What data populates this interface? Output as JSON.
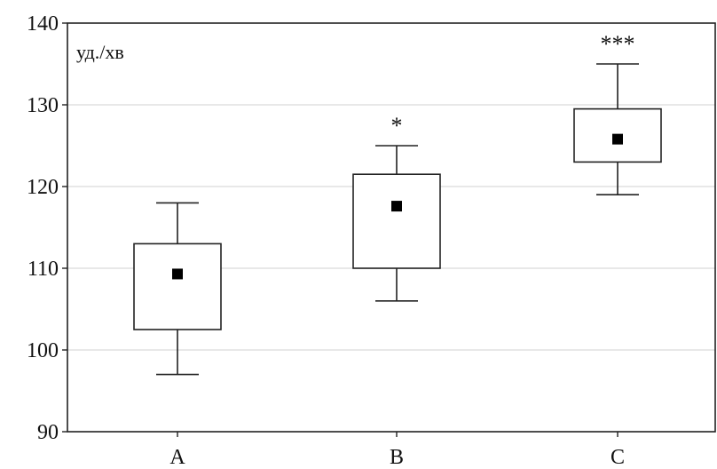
{
  "chart_data": {
    "type": "box",
    "ylabel": "уд./хв",
    "ylim": [
      90,
      140
    ],
    "yticks": [
      90,
      100,
      110,
      120,
      130,
      140
    ],
    "grid": true,
    "categories": [
      "A",
      "B",
      "C"
    ],
    "boxes": [
      {
        "category": "A",
        "whisker_low": 97,
        "box_low": 102.5,
        "mean": 109.3,
        "box_high": 113,
        "whisker_high": 118,
        "significance": ""
      },
      {
        "category": "B",
        "whisker_low": 106,
        "box_low": 110,
        "mean": 117.6,
        "box_high": 121.5,
        "whisker_high": 125,
        "significance": "*"
      },
      {
        "category": "C",
        "whisker_low": 119,
        "box_low": 123,
        "mean": 125.8,
        "box_high": 129.5,
        "whisker_high": 135,
        "significance": "***"
      }
    ]
  }
}
